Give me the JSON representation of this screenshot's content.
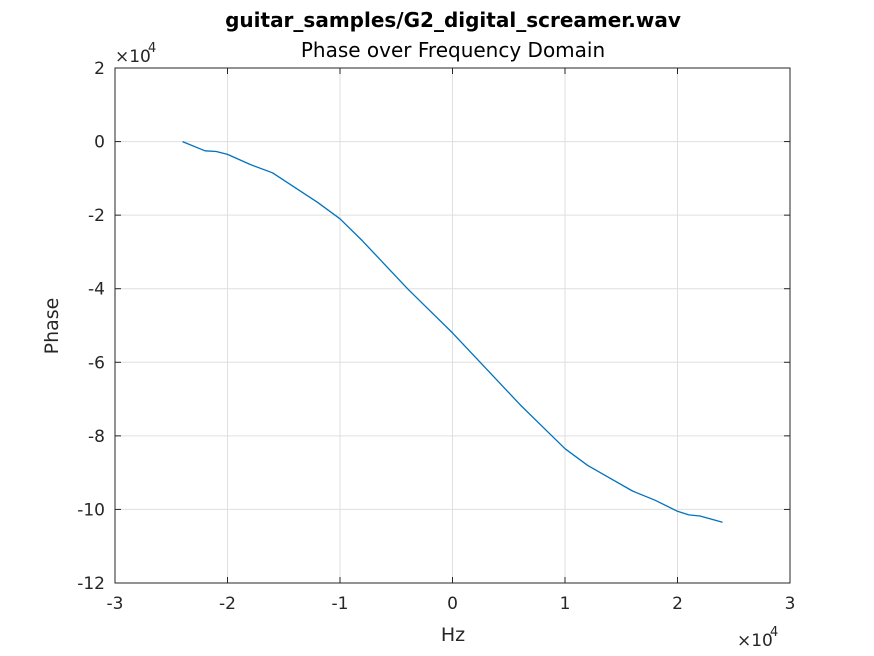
{
  "chart_data": {
    "type": "line",
    "title": "guitar_samples/G2_digital_screamer.wav",
    "subtitle": "Phase over Frequency Domain",
    "xlabel": "Hz",
    "ylabel": "Phase",
    "xlim": [
      -30000,
      30000
    ],
    "ylim": [
      -120000,
      20000
    ],
    "xticks": [
      -30000,
      -20000,
      -10000,
      0,
      10000,
      20000,
      30000
    ],
    "yticks": [
      -120000,
      -100000,
      -80000,
      -60000,
      -40000,
      -20000,
      0,
      20000
    ],
    "xtick_labels": [
      "-3",
      "-2",
      "-1",
      "0",
      "1",
      "2",
      "3"
    ],
    "ytick_labels": [
      "-12",
      "-10",
      "-8",
      "-6",
      "-4",
      "-2",
      "0",
      "2"
    ],
    "x_multiplier": {
      "base": "×10",
      "exp": "4"
    },
    "y_multiplier": {
      "base": "×10",
      "exp": "4"
    },
    "grid": true,
    "line_color": "#0072bd",
    "series": [
      {
        "x": [
          -24000,
          -22000,
          -21000,
          -20000,
          -18000,
          -16000,
          -14000,
          -12000,
          -10000,
          -8000,
          -6000,
          -4000,
          -2000,
          0,
          2000,
          4000,
          6000,
          8000,
          10000,
          12000,
          14000,
          16000,
          18000,
          20000,
          21000,
          22000,
          24000
        ],
        "values": [
          0,
          -2500,
          -2700,
          -3500,
          -6200,
          -8500,
          -12500,
          -16500,
          -21000,
          -27000,
          -33500,
          -40000,
          -46000,
          -52000,
          -58500,
          -65000,
          -71500,
          -77500,
          -83500,
          -88000,
          -91500,
          -95000,
          -97500,
          -100500,
          -101500,
          -101800,
          -103500
        ]
      }
    ]
  }
}
